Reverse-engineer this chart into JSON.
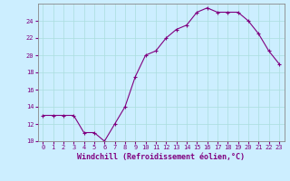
{
  "x": [
    0,
    1,
    2,
    3,
    4,
    5,
    6,
    7,
    8,
    9,
    10,
    11,
    12,
    13,
    14,
    15,
    16,
    17,
    18,
    19,
    20,
    21,
    22,
    23
  ],
  "y": [
    13,
    13,
    13,
    13,
    11,
    11,
    10,
    12,
    14,
    17.5,
    20,
    20.5,
    22,
    23,
    23.5,
    25,
    25.5,
    25,
    25,
    25,
    24,
    22.5,
    20.5,
    19
  ],
  "line_color": "#800080",
  "marker": "+",
  "marker_color": "#800080",
  "bg_color": "#cceeff",
  "grid_color": "#aadddd",
  "xlabel": "Windchill (Refroidissement éolien,°C)",
  "ylabel": "",
  "xlim": [
    -0.5,
    23.5
  ],
  "ylim": [
    10,
    26
  ],
  "yticks": [
    10,
    12,
    14,
    16,
    18,
    20,
    22,
    24
  ],
  "xticks": [
    0,
    1,
    2,
    3,
    4,
    5,
    6,
    7,
    8,
    9,
    10,
    11,
    12,
    13,
    14,
    15,
    16,
    17,
    18,
    19,
    20,
    21,
    22,
    23
  ],
  "tick_label_color": "#800080",
  "tick_fontsize": 5.0,
  "xlabel_fontsize": 6.0,
  "linewidth": 0.8,
  "markersize": 3.5
}
